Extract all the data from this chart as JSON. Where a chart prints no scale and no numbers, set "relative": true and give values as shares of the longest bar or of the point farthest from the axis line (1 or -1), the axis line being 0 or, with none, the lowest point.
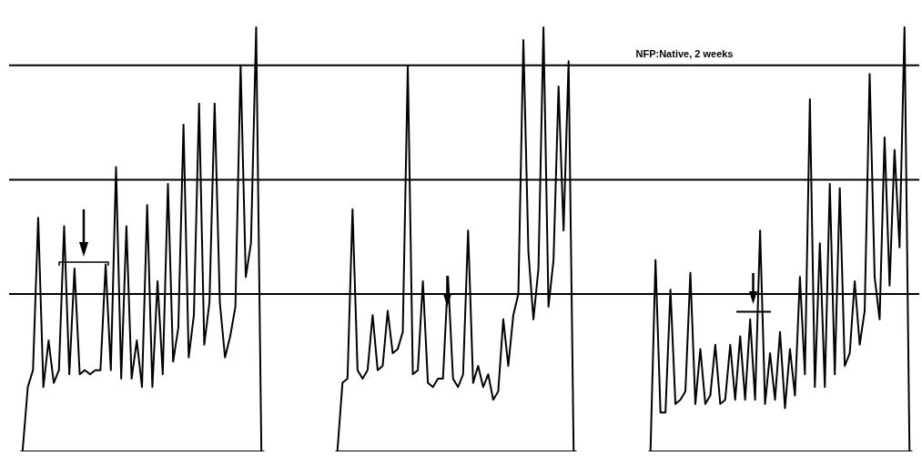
{
  "chart_data": [
    {
      "type": "line",
      "relative": true,
      "marker": "none",
      "line_style": "solid",
      "categories": [
        null,
        null,
        null,
        null,
        null,
        null,
        null,
        null,
        null,
        null,
        null,
        null,
        null,
        null,
        null,
        null,
        null,
        null,
        null,
        null,
        null,
        null,
        null,
        null,
        null,
        null,
        null,
        null,
        null,
        null,
        null,
        null,
        null,
        null,
        null,
        null,
        null,
        null,
        null,
        null,
        null,
        null,
        null,
        null,
        null,
        null,
        null
      ],
      "ref_lines": [
        {
          "axis": "y",
          "value": 0.91,
          "label": null,
          "color": "#000000"
        },
        {
          "axis": "y",
          "value": 0.64,
          "label": null,
          "color": "#000000"
        },
        {
          "axis": "y",
          "value": 0.37,
          "label": null,
          "color": "#000000"
        }
      ],
      "series": [
        {
          "color": "#000000",
          "values": [
            0,
            0.15,
            0.19,
            0.55,
            0.15,
            0.26,
            0.16,
            0.19,
            0.53,
            0.18,
            0.43,
            0.18,
            0.19,
            0.18,
            0.19,
            0.19,
            0.44,
            0.19,
            0.67,
            0.17,
            0.53,
            0.17,
            0.26,
            0.15,
            0.58,
            0.15,
            0.4,
            0.18,
            0.63,
            0.21,
            0.29,
            0.77,
            0.22,
            0.32,
            0.82,
            0.25,
            0.35,
            0.82,
            0.35,
            0.22,
            0.27,
            0.34,
            0.91,
            0.41,
            0.49,
            1,
            0
          ]
        }
      ]
    },
    {
      "type": "line",
      "relative": true,
      "marker": "none",
      "line_style": "solid",
      "categories": [
        null,
        null,
        null,
        null,
        null,
        null,
        null,
        null,
        null,
        null,
        null,
        null,
        null,
        null,
        null,
        null,
        null,
        null,
        null,
        null,
        null,
        null,
        null,
        null,
        null,
        null,
        null,
        null,
        null,
        null,
        null,
        null,
        null,
        null,
        null,
        null,
        null,
        null,
        null,
        null,
        null,
        null,
        null,
        null,
        null,
        null,
        null,
        null
      ],
      "ref_lines": [
        {
          "axis": "y",
          "value": 0.91,
          "label": null,
          "color": "#000000"
        },
        {
          "axis": "y",
          "value": 0.64,
          "label": null,
          "color": "#000000"
        },
        {
          "axis": "y",
          "value": 0.37,
          "label": null,
          "color": "#000000"
        }
      ],
      "series": [
        {
          "color": "#000000",
          "values": [
            0,
            0.16,
            0.17,
            0.57,
            0.19,
            0.17,
            0.19,
            0.32,
            0.19,
            0.2,
            0.33,
            0.23,
            0.24,
            0.28,
            0.91,
            0.18,
            0.19,
            0.4,
            0.16,
            0.15,
            0.17,
            0.17,
            0.41,
            0.17,
            0.15,
            0.18,
            0.52,
            0.16,
            0.2,
            0.15,
            0.18,
            0.12,
            0.14,
            0.31,
            0.2,
            0.32,
            0.37,
            0.97,
            0.47,
            0.31,
            0.43,
            1,
            0.34,
            0.45,
            0.86,
            0.52,
            0.92,
            0
          ]
        }
      ]
    },
    {
      "type": "line",
      "relative": true,
      "marker": "none",
      "line_style": "solid",
      "categories": [
        null,
        null,
        null,
        null,
        null,
        null,
        null,
        null,
        null,
        null,
        null,
        null,
        null,
        null,
        null,
        null,
        null,
        null,
        null,
        null,
        null,
        null,
        null,
        null,
        null,
        null,
        null,
        null,
        null,
        null,
        null,
        null,
        null,
        null,
        null,
        null,
        null,
        null,
        null,
        null,
        null,
        null,
        null,
        null,
        null,
        null,
        null,
        null,
        null,
        null,
        null,
        null,
        null
      ],
      "annotations": [
        "NFP:Native, 2 weeks"
      ],
      "ref_lines": [
        {
          "axis": "y",
          "value": 0.91,
          "label": null,
          "color": "#000000"
        },
        {
          "axis": "y",
          "value": 0.64,
          "label": null,
          "color": "#000000"
        },
        {
          "axis": "y",
          "value": 0.37,
          "label": null,
          "color": "#000000"
        }
      ],
      "series": [
        {
          "color": "#000000",
          "values": [
            0,
            0.45,
            0.09,
            0.09,
            0.38,
            0.11,
            0.12,
            0.14,
            0.42,
            0.11,
            0.24,
            0.11,
            0.13,
            0.25,
            0.11,
            0.12,
            0.25,
            0.12,
            0.27,
            0.12,
            0.31,
            0.12,
            0.52,
            0.11,
            0.23,
            0.12,
            0.28,
            0.1,
            0.24,
            0.13,
            0.41,
            0.18,
            0.83,
            0.15,
            0.49,
            0.15,
            0.63,
            0.18,
            0.62,
            0.2,
            0.23,
            0.4,
            0.25,
            0.33,
            0.89,
            0.41,
            0.31,
            0.74,
            0.39,
            0.71,
            0.48,
            1,
            0
          ]
        }
      ]
    }
  ]
}
